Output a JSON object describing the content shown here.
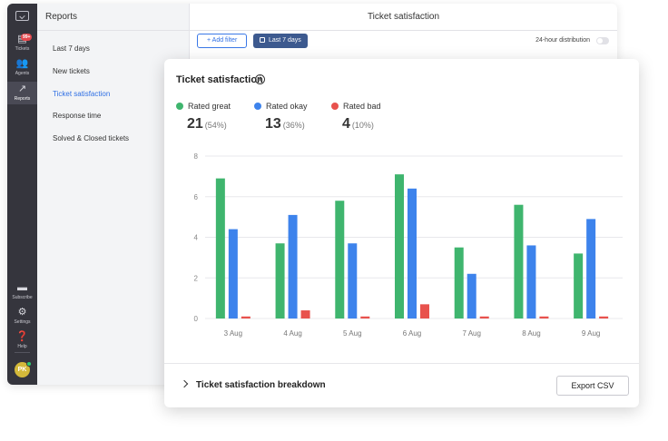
{
  "sidebar": {
    "badge": "99+",
    "items": [
      {
        "label": "Tickets",
        "icon": "tickets-icon"
      },
      {
        "label": "Agents",
        "icon": "agents-icon"
      },
      {
        "label": "Reports",
        "icon": "reports-icon"
      },
      {
        "label": "Subscribe",
        "icon": "subscribe-icon"
      },
      {
        "label": "Settings",
        "icon": "settings-icon"
      },
      {
        "label": "Help",
        "icon": "help-icon"
      }
    ],
    "avatar": "PK"
  },
  "reports": {
    "header": "Reports",
    "items": [
      "Last 7 days",
      "New tickets",
      "Ticket satisfaction",
      "Response time",
      "Solved & Closed tickets"
    ],
    "active_index": 2
  },
  "content": {
    "title": "Ticket satisfaction",
    "add_filter": "+ Add filter",
    "date_range": "Last 7 days",
    "distribution_label": "24-hour distribution"
  },
  "card": {
    "title": "Ticket satisfaction",
    "info": "i",
    "stats": [
      {
        "label": "Rated great",
        "count": "21",
        "percent": "(54%)",
        "color": "#3fb56e"
      },
      {
        "label": "Rated okay",
        "count": "13",
        "percent": "(36%)",
        "color": "#3d83ec"
      },
      {
        "label": "Rated bad",
        "count": "4",
        "percent": "(10%)",
        "color": "#e8524d"
      }
    ],
    "breakdown_label": "Ticket satisfaction breakdown",
    "export_label": "Export CSV"
  },
  "chart_data": {
    "type": "bar",
    "title": "Ticket satisfaction",
    "categories": [
      "3 Aug",
      "4 Aug",
      "5 Aug",
      "6 Aug",
      "7 Aug",
      "8 Aug",
      "9 Aug"
    ],
    "series": [
      {
        "name": "Rated great",
        "color": "#3fb56e",
        "values": [
          6.9,
          3.7,
          5.8,
          7.1,
          3.5,
          5.6,
          3.2
        ]
      },
      {
        "name": "Rated okay",
        "color": "#3d83ec",
        "values": [
          4.4,
          5.1,
          3.7,
          6.4,
          2.2,
          3.6,
          4.9
        ]
      },
      {
        "name": "Rated bad",
        "color": "#e8524d",
        "values": [
          0.1,
          0.4,
          0.1,
          0.7,
          0.1,
          0.1,
          0.1
        ]
      }
    ],
    "ylim": [
      0,
      8
    ],
    "yticks": [
      "0",
      "2",
      "4",
      "6",
      "8"
    ],
    "grid": true
  }
}
